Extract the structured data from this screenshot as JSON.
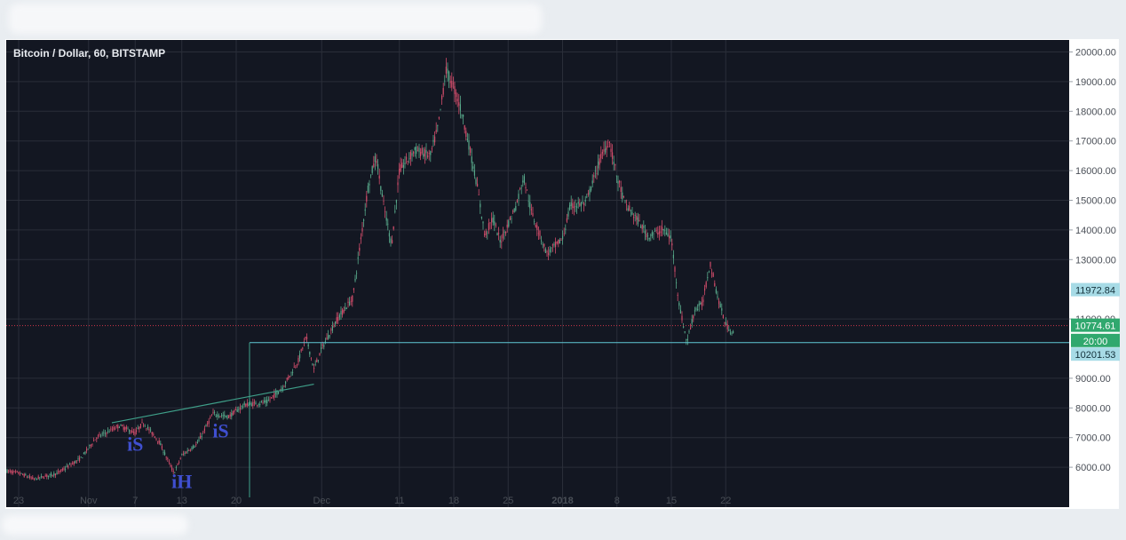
{
  "chart_data": {
    "type": "candlestick",
    "title": "Bitcoin / Dollar, 60, BITSTAMP",
    "x_tick_labels": [
      "23",
      "Nov",
      "7",
      "13",
      "20",
      "Dec",
      "11",
      "18",
      "25",
      "2018",
      "8",
      "15",
      "22"
    ],
    "x_tick_dates": [
      "2017-10-23",
      "2017-11-01",
      "2017-11-07",
      "2017-11-13",
      "2017-11-20",
      "2017-12-01",
      "2017-12-11",
      "2017-12-18",
      "2017-12-25",
      "2018-01-01",
      "2018-01-08",
      "2018-01-15",
      "2018-01-22"
    ],
    "y_tick_labels": [
      "20000.00",
      "19000.00",
      "18000.00",
      "17000.00",
      "16000.00",
      "15000.00",
      "14000.00",
      "13000.00",
      "11000.00",
      "9000.00",
      "8000.00",
      "7000.00",
      "6000.00"
    ],
    "ylim": [
      5100,
      20400
    ],
    "price_series": [
      [
        "2017-10-20",
        5950
      ],
      [
        "2017-10-23",
        5800
      ],
      [
        "2017-10-25",
        5600
      ],
      [
        "2017-10-28",
        5800
      ],
      [
        "2017-10-31",
        6300
      ],
      [
        "2017-11-02",
        7000
      ],
      [
        "2017-11-05",
        7400
      ],
      [
        "2017-11-07",
        7150
      ],
      [
        "2017-11-08",
        7500
      ],
      [
        "2017-11-10",
        6900
      ],
      [
        "2017-11-12",
        5800
      ],
      [
        "2017-11-13",
        6400
      ],
      [
        "2017-11-15",
        6800
      ],
      [
        "2017-11-17",
        7800
      ],
      [
        "2017-11-19",
        7700
      ],
      [
        "2017-11-21",
        8100
      ],
      [
        "2017-11-24",
        8200
      ],
      [
        "2017-11-26",
        8700
      ],
      [
        "2017-11-28",
        9600
      ],
      [
        "2017-11-29",
        10400
      ],
      [
        "2017-11-30",
        9300
      ],
      [
        "2017-12-01",
        10000
      ],
      [
        "2017-12-03",
        11000
      ],
      [
        "2017-12-05",
        11700
      ],
      [
        "2017-12-07",
        15500
      ],
      [
        "2017-12-08",
        16500
      ],
      [
        "2017-12-09",
        14800
      ],
      [
        "2017-12-10",
        13500
      ],
      [
        "2017-12-11",
        16000
      ],
      [
        "2017-12-13",
        16700
      ],
      [
        "2017-12-15",
        16500
      ],
      [
        "2017-12-16",
        17500
      ],
      [
        "2017-12-17",
        19400
      ],
      [
        "2017-12-18",
        18800
      ],
      [
        "2017-12-19",
        18000
      ],
      [
        "2017-12-20",
        16800
      ],
      [
        "2017-12-21",
        15500
      ],
      [
        "2017-12-22",
        13800
      ],
      [
        "2017-12-23",
        14400
      ],
      [
        "2017-12-24",
        13600
      ],
      [
        "2017-12-26",
        14800
      ],
      [
        "2017-12-27",
        15800
      ],
      [
        "2017-12-28",
        14600
      ],
      [
        "2017-12-30",
        13200
      ],
      [
        "2018-01-01",
        13700
      ],
      [
        "2018-01-02",
        14800
      ],
      [
        "2018-01-04",
        14900
      ],
      [
        "2018-01-06",
        16500
      ],
      [
        "2018-01-07",
        17000
      ],
      [
        "2018-01-08",
        15800
      ],
      [
        "2018-01-09",
        14900
      ],
      [
        "2018-01-11",
        14200
      ],
      [
        "2018-01-12",
        13800
      ],
      [
        "2018-01-14",
        14000
      ],
      [
        "2018-01-15",
        13700
      ],
      [
        "2018-01-16",
        11500
      ],
      [
        "2018-01-17",
        10200
      ],
      [
        "2018-01-18",
        11300
      ],
      [
        "2018-01-19",
        11500
      ],
      [
        "2018-01-20",
        12900
      ],
      [
        "2018-01-21",
        11700
      ],
      [
        "2018-01-22",
        10800
      ],
      [
        "2018-01-23",
        10500
      ]
    ],
    "trendline": [
      [
        "2017-11-04",
        7500
      ],
      [
        "2017-11-30",
        8800
      ]
    ],
    "horizontal_level": 10201.53,
    "red_dotted_level": 10774.61,
    "annotations": [
      {
        "text": "iS",
        "date": "2017-11-07",
        "price": 6550
      },
      {
        "text": "iH",
        "date": "2017-11-13",
        "price": 5300
      },
      {
        "text": "iS",
        "date": "2017-11-18",
        "price": 7000
      }
    ],
    "price_labels": [
      {
        "text": "11972.84",
        "price": 11972.84,
        "color": "#a7dbe6"
      },
      {
        "text": "10774.61",
        "price": 10774.61,
        "color": "#30a86e"
      },
      {
        "text": "20:00",
        "price": 10260,
        "color": "#30a86e"
      },
      {
        "text": "10201.53",
        "price": 9800,
        "color": "#a7dbe6"
      }
    ],
    "colors": {
      "background": "#131722",
      "grid": "#2a2e39",
      "up": "#57a88a",
      "down": "#d04c6a",
      "axis_bg": "#ffffff",
      "annotation": "#3f4fd0",
      "hline": "#5fc8d6",
      "trend": "#3fa08a"
    }
  }
}
